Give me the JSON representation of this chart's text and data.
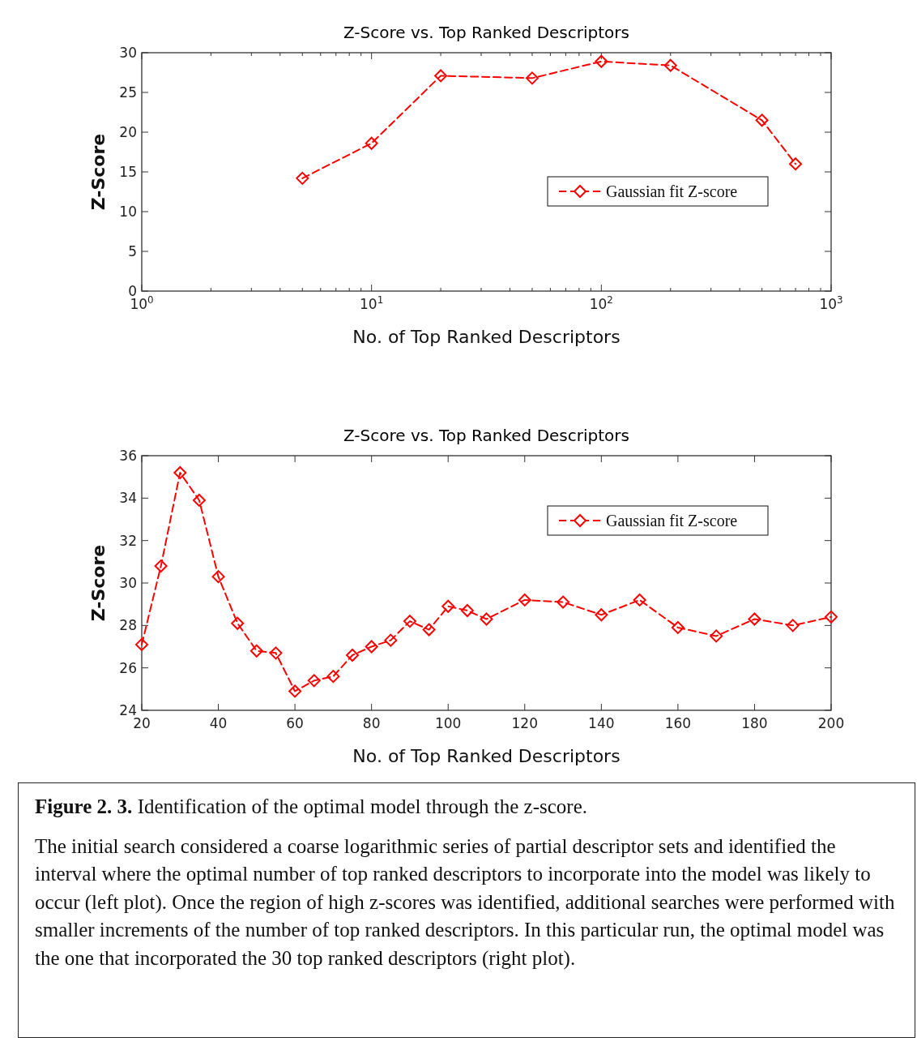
{
  "chart_data": [
    {
      "type": "line",
      "title": "Z-Score vs. Top Ranked Descriptors",
      "xlabel": "No. of Top Ranked Descriptors",
      "ylabel": "Z-Score",
      "log": "x",
      "x": [
        5,
        10,
        20,
        50,
        100,
        200,
        500,
        700
      ],
      "series": [
        {
          "name": "Gaussian fit Z-score",
          "color": "#ff0000",
          "values": [
            14.2,
            18.6,
            27.1,
            26.8,
            28.9,
            28.4,
            21.5,
            16.0
          ]
        }
      ],
      "xlim": [
        1,
        1000
      ],
      "xticks": [
        {
          "value": 1,
          "label": "10$^{0}$"
        },
        {
          "value": 2,
          "label": null
        },
        {
          "value": 3,
          "label": null
        },
        {
          "value": 4,
          "label": null
        },
        {
          "value": 5,
          "label": null
        },
        {
          "value": 6,
          "label": null
        },
        {
          "value": 7,
          "label": null
        },
        {
          "value": 8,
          "label": null
        },
        {
          "value": 9,
          "label": null
        },
        {
          "value": 10,
          "label": "10$^{1}$"
        },
        {
          "value": 20,
          "label": null
        },
        {
          "value": 30,
          "label": null
        },
        {
          "value": 40,
          "label": null
        },
        {
          "value": 50,
          "label": null
        },
        {
          "value": 60,
          "label": null
        },
        {
          "value": 70,
          "label": null
        },
        {
          "value": 80,
          "label": null
        },
        {
          "value": 90,
          "label": null
        },
        {
          "value": 100,
          "label": "10$^{2}$"
        },
        {
          "value": 200,
          "label": null
        },
        {
          "value": 300,
          "label": null
        },
        {
          "value": 400,
          "label": null
        },
        {
          "value": 500,
          "label": null
        },
        {
          "value": 600,
          "label": null
        },
        {
          "value": 700,
          "label": null
        },
        {
          "value": 800,
          "label": null
        },
        {
          "value": 900,
          "label": null
        },
        {
          "value": 1000,
          "label": "10$^{3}$"
        }
      ],
      "ylim": [
        0,
        30
      ],
      "yticks": [
        0,
        5,
        10,
        15,
        20,
        25,
        30
      ],
      "marker": "diamond",
      "line_style": "dashed",
      "legend": "right",
      "grid": false
    },
    {
      "type": "line",
      "title": "Z-Score vs. Top Ranked Descriptors",
      "xlabel": "No. of Top Ranked Descriptors",
      "ylabel": "Z-Score",
      "x": [
        20,
        25,
        30,
        35,
        40,
        45,
        50,
        55,
        60,
        65,
        70,
        75,
        80,
        85,
        90,
        95,
        100,
        105,
        110,
        120,
        130,
        140,
        150,
        160,
        170,
        180,
        190,
        200
      ],
      "series": [
        {
          "name": "Gaussian fit Z-score",
          "color": "#ff0000",
          "values": [
            27.1,
            30.8,
            35.2,
            33.9,
            30.3,
            28.1,
            26.8,
            26.7,
            24.9,
            25.4,
            25.6,
            26.6,
            27.0,
            27.3,
            28.2,
            27.8,
            28.9,
            28.7,
            28.3,
            29.2,
            29.1,
            28.5,
            29.2,
            27.9,
            27.5,
            28.3,
            28.0,
            28.4
          ]
        }
      ],
      "xlim": [
        20,
        200
      ],
      "xticks": [
        20,
        40,
        60,
        80,
        100,
        120,
        140,
        160,
        180,
        200
      ],
      "ylim": [
        24,
        36
      ],
      "yticks": [
        24,
        26,
        28,
        30,
        32,
        34,
        36
      ],
      "marker": "diamond",
      "line_style": "dashed",
      "legend": "top right",
      "grid": false
    },
    {
      "type": "other",
      "title": "Figure 2. 3.",
      "subtitle": "Identification of the optimal model through the z-score.",
      "annotations": [
        "The initial search considered a coarse logarithmic series of partial descriptor sets and identified the interval where the optimal number of top ranked descriptors to incorporate into the model was likely to occur (left plot). Once the region of high z-scores was identified, additional searches were performed with smaller increments of the number of top ranked descriptors. In this particular run, the optimal model was the one that incorporated the 30 top ranked descriptors (right plot)."
      ]
    }
  ]
}
